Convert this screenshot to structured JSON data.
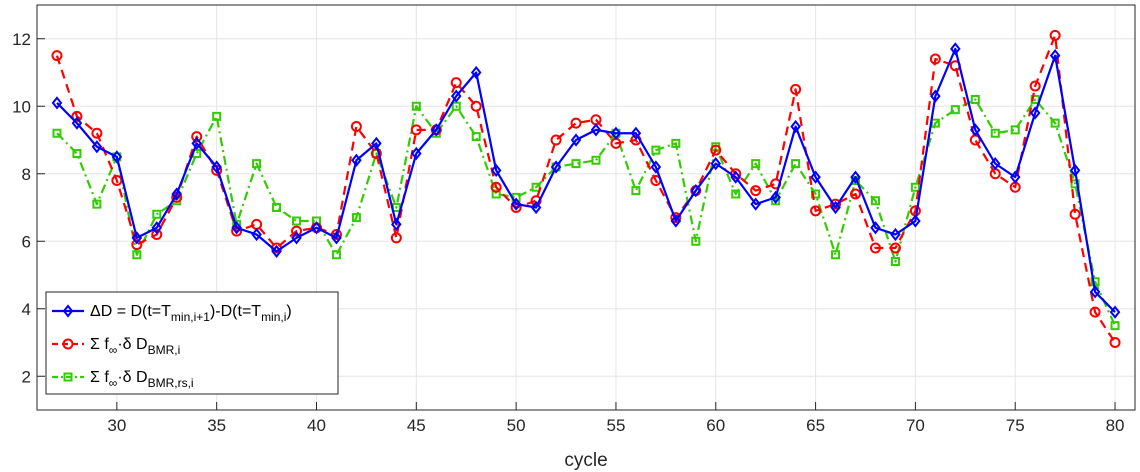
{
  "chart_data": {
    "type": "line",
    "xlabel": "cycle",
    "ylabel": "",
    "xlim": [
      26,
      81
    ],
    "ylim": [
      1,
      13
    ],
    "xticks": [
      30,
      35,
      40,
      45,
      50,
      55,
      60,
      65,
      70,
      75,
      80
    ],
    "yticks": [
      2,
      4,
      6,
      8,
      10,
      12
    ],
    "grid": true,
    "legend_position": "bottom-left",
    "x": [
      27,
      28,
      29,
      30,
      31,
      32,
      33,
      34,
      35,
      36,
      37,
      38,
      39,
      40,
      41,
      42,
      43,
      44,
      45,
      46,
      47,
      48,
      49,
      50,
      51,
      52,
      53,
      54,
      55,
      56,
      57,
      58,
      59,
      60,
      61,
      62,
      63,
      64,
      65,
      66,
      67,
      68,
      69,
      70,
      71,
      72,
      73,
      74,
      75,
      76,
      77,
      78,
      79,
      80
    ],
    "series": [
      {
        "name": "ΔD = D(t=Tmin,i+1)-D(t=Tmin,i)",
        "label_main": "ΔD = D(t=T",
        "label_sub": "min,i+1",
        "label_mid": ")-D(t=T",
        "label_sub2": "min,i",
        "label_end": ")",
        "color": "#0000ff",
        "style": "solid",
        "marker": "diamond",
        "values": [
          10.1,
          9.5,
          8.8,
          8.5,
          6.1,
          6.4,
          7.4,
          8.9,
          8.2,
          6.4,
          6.2,
          5.7,
          6.1,
          6.4,
          6.1,
          8.4,
          8.9,
          6.5,
          8.6,
          9.3,
          10.3,
          11.0,
          8.1,
          7.1,
          7.0,
          8.2,
          9.0,
          9.3,
          9.2,
          9.2,
          8.2,
          6.6,
          7.5,
          8.3,
          7.9,
          7.1,
          7.3,
          9.4,
          7.9,
          7.0,
          7.9,
          6.4,
          6.2,
          6.6,
          10.3,
          11.7,
          9.3,
          8.3,
          7.9,
          9.8,
          11.5,
          8.1,
          4.5,
          3.9
        ]
      },
      {
        "name": "Σ f∞·δ DBMR,i",
        "label_main": "Σ f",
        "label_sub": "∞",
        "label_mid": "·δ D",
        "label_sub2": "BMR,i",
        "label_end": "",
        "color": "#ff0000",
        "style": "dashed",
        "marker": "circle",
        "values": [
          11.5,
          9.7,
          9.2,
          7.8,
          5.9,
          6.2,
          7.3,
          9.1,
          8.1,
          6.3,
          6.5,
          5.8,
          6.3,
          6.4,
          6.2,
          9.4,
          8.6,
          6.1,
          9.3,
          9.3,
          10.7,
          10.0,
          7.6,
          7.0,
          7.2,
          9.0,
          9.5,
          9.6,
          8.9,
          9.0,
          7.8,
          6.7,
          7.5,
          8.7,
          8.0,
          7.5,
          7.7,
          10.5,
          6.9,
          7.1,
          7.4,
          5.8,
          5.8,
          6.9,
          11.4,
          11.2,
          9.0,
          8.0,
          7.6,
          10.6,
          12.1,
          6.8,
          3.9,
          3.0
        ]
      },
      {
        "name": "Σ f∞·δ DBMR,rs,i",
        "label_main": "Σ f",
        "label_sub": "∞",
        "label_mid": "·δ D",
        "label_sub2": "BMR,rs,i",
        "label_end": "",
        "color": "#33cc00",
        "style": "dashdot",
        "marker": "square",
        "values": [
          9.2,
          8.6,
          7.1,
          8.5,
          5.6,
          6.8,
          7.2,
          8.6,
          9.7,
          6.5,
          8.3,
          7.0,
          6.6,
          6.6,
          5.6,
          6.7,
          8.6,
          7.0,
          10.0,
          9.2,
          10.0,
          9.1,
          7.4,
          7.3,
          7.6,
          8.2,
          8.3,
          8.4,
          9.2,
          7.5,
          8.7,
          8.9,
          6.0,
          8.8,
          7.4,
          8.3,
          7.2,
          8.3,
          7.4,
          5.6,
          7.8,
          7.2,
          5.4,
          7.6,
          9.5,
          9.9,
          10.2,
          9.2,
          9.3,
          10.2,
          9.5,
          7.7,
          4.8,
          3.5
        ]
      }
    ]
  }
}
